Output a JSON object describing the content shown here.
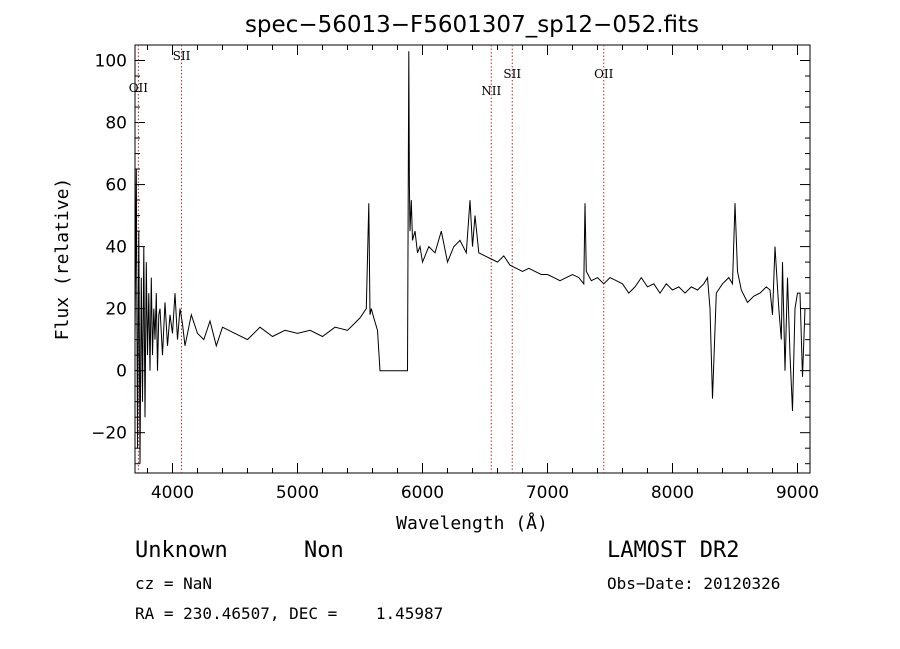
{
  "chart_data": {
    "type": "line",
    "title": "spec−56013−F5601307_sp12−052.fits",
    "xlabel": "Wavelength (Å)",
    "ylabel": "Flux (relative)",
    "xlim": [
      3700,
      9100
    ],
    "ylim": [
      -33,
      105
    ],
    "xticks": [
      4000,
      5000,
      6000,
      7000,
      8000,
      9000
    ],
    "yticks": [
      -20,
      0,
      20,
      40,
      60,
      80,
      100
    ],
    "ytick_labels": [
      "−20",
      "0",
      "20",
      "40",
      "60",
      "80",
      "100"
    ],
    "grid": false,
    "lines": [
      {
        "label": "OII",
        "x": 3727
      },
      {
        "label": "SII",
        "x": 4072
      },
      {
        "label": "NII",
        "x": 6550
      },
      {
        "label": "SII",
        "x": 6718
      },
      {
        "label": "OII",
        "x": 7450
      }
    ],
    "series": [
      {
        "x": [
          3700,
          3710,
          3720,
          3730,
          3740,
          3750,
          3760,
          3770,
          3780,
          3790,
          3800,
          3810,
          3820,
          3830,
          3840,
          3850,
          3860,
          3870,
          3880,
          3890,
          3900,
          3920,
          3940,
          3960,
          3980,
          4000,
          4020,
          4040,
          4060,
          4080,
          4100,
          4150,
          4200,
          4250,
          4300,
          4350,
          4400,
          4500,
          4600,
          4700,
          4800,
          4900,
          5000,
          5100,
          5200,
          5300,
          5400,
          5450,
          5500,
          5550,
          5570,
          5580,
          5590,
          5610,
          5640,
          5660,
          5700,
          5800,
          5870,
          5880,
          5890,
          5895,
          5900,
          5910,
          5920,
          5940,
          5960,
          5980,
          6000,
          6050,
          6100,
          6150,
          6200,
          6250,
          6300,
          6350,
          6380,
          6400,
          6420,
          6450,
          6500,
          6550,
          6600,
          6650,
          6700,
          6750,
          6800,
          6850,
          6900,
          6950,
          7000,
          7050,
          7100,
          7150,
          7200,
          7250,
          7290,
          7300,
          7310,
          7350,
          7400,
          7450,
          7500,
          7550,
          7600,
          7650,
          7700,
          7750,
          7800,
          7850,
          7900,
          7950,
          8000,
          8050,
          8100,
          8150,
          8200,
          8250,
          8280,
          8300,
          8320,
          8350,
          8400,
          8450,
          8480,
          8500,
          8520,
          8550,
          8600,
          8650,
          8700,
          8750,
          8780,
          8800,
          8820,
          8850,
          8870,
          8880,
          8900,
          8920,
          8940,
          8960,
          8980,
          9000,
          9020,
          9040,
          9060
        ],
        "y": [
          10,
          65,
          -25,
          45,
          -30,
          30,
          -10,
          40,
          -15,
          35,
          5,
          25,
          0,
          30,
          5,
          20,
          10,
          25,
          0,
          18,
          20,
          5,
          22,
          8,
          18,
          12,
          25,
          10,
          20,
          15,
          8,
          18,
          12,
          10,
          16,
          8,
          14,
          12,
          10,
          14,
          11,
          13,
          12,
          13,
          11,
          14,
          13,
          15,
          17,
          20,
          54,
          18,
          20,
          17,
          13,
          0,
          0,
          0,
          0,
          0,
          103,
          60,
          45,
          55,
          42,
          45,
          38,
          40,
          35,
          40,
          38,
          45,
          35,
          40,
          42,
          38,
          55,
          40,
          50,
          38,
          37,
          36,
          35,
          37,
          34,
          33,
          32,
          33,
          32,
          31,
          31,
          30,
          29,
          30,
          31,
          30,
          28,
          54,
          32,
          29,
          30,
          28,
          30,
          29,
          28,
          25,
          27,
          30,
          27,
          28,
          25,
          28,
          26,
          27,
          25,
          27,
          26,
          28,
          30,
          20,
          -9,
          25,
          28,
          30,
          28,
          54,
          32,
          26,
          22,
          24,
          25,
          27,
          26,
          18,
          40,
          20,
          10,
          35,
          0,
          30,
          5,
          -13,
          20,
          25,
          25,
          -2,
          20
        ]
      }
    ]
  },
  "info": {
    "object_class": "Unknown",
    "object_subclass": "Non",
    "survey": "LAMOST DR2",
    "redshift": "cz = NaN",
    "obs_date": "Obs−Date: 20120326",
    "coords": "RA = 230.46507, DEC =    1.45987"
  }
}
